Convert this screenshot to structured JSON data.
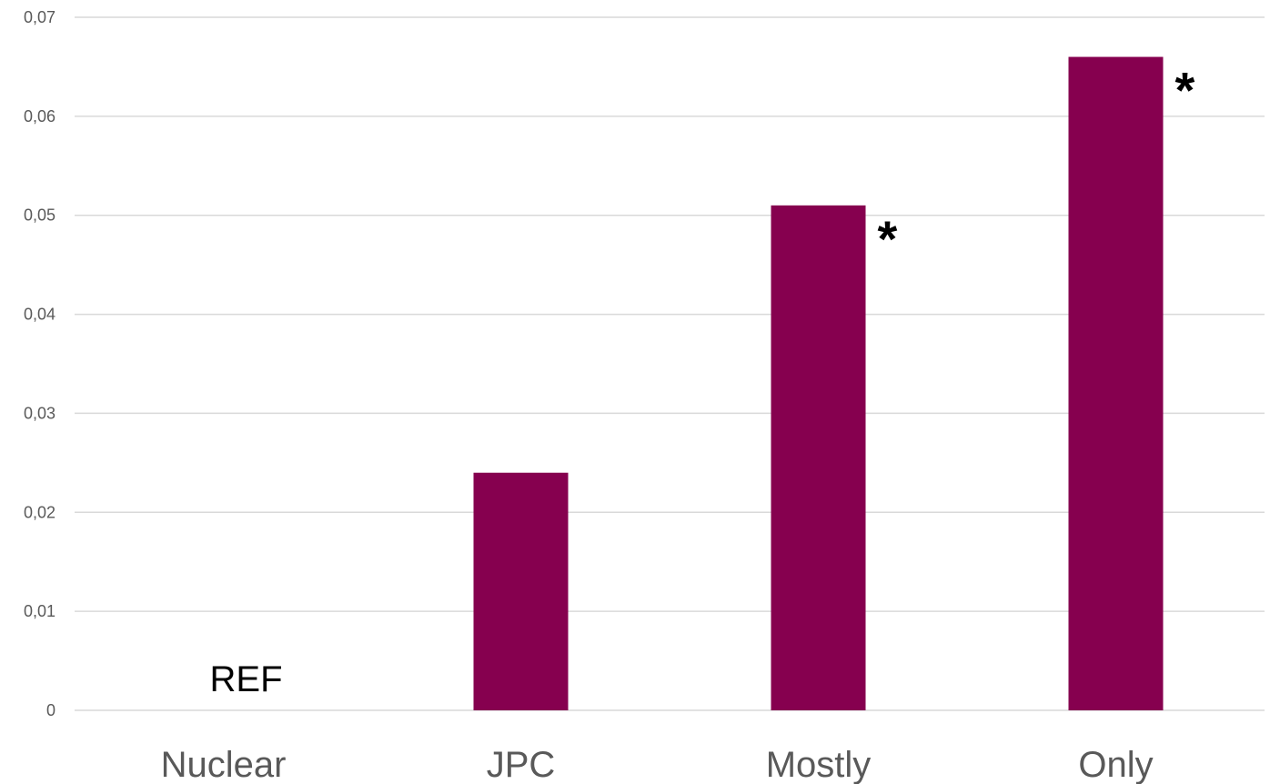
{
  "chart_data": {
    "type": "bar",
    "title": "",
    "xlabel": "",
    "ylabel": "",
    "categories": [
      "Nuclear",
      "JPC",
      "Mostly",
      "Only"
    ],
    "values": [
      0,
      0.024,
      0.051,
      0.066
    ],
    "ylim": [
      0,
      0.07
    ],
    "yticks": [
      0,
      0.01,
      0.02,
      0.03,
      0.04,
      0.05,
      0.06,
      0.07
    ],
    "ytick_labels": [
      "0",
      "0,01",
      "0,02",
      "0,03",
      "0,04",
      "0,05",
      "0,06",
      "0,07"
    ],
    "grid": true,
    "legend": "none",
    "bar_color": "#86004f",
    "annotations": [
      {
        "category": "Nuclear",
        "text": "REF"
      },
      {
        "category": "Mostly",
        "text": "*"
      },
      {
        "category": "Only",
        "text": "*"
      }
    ]
  }
}
